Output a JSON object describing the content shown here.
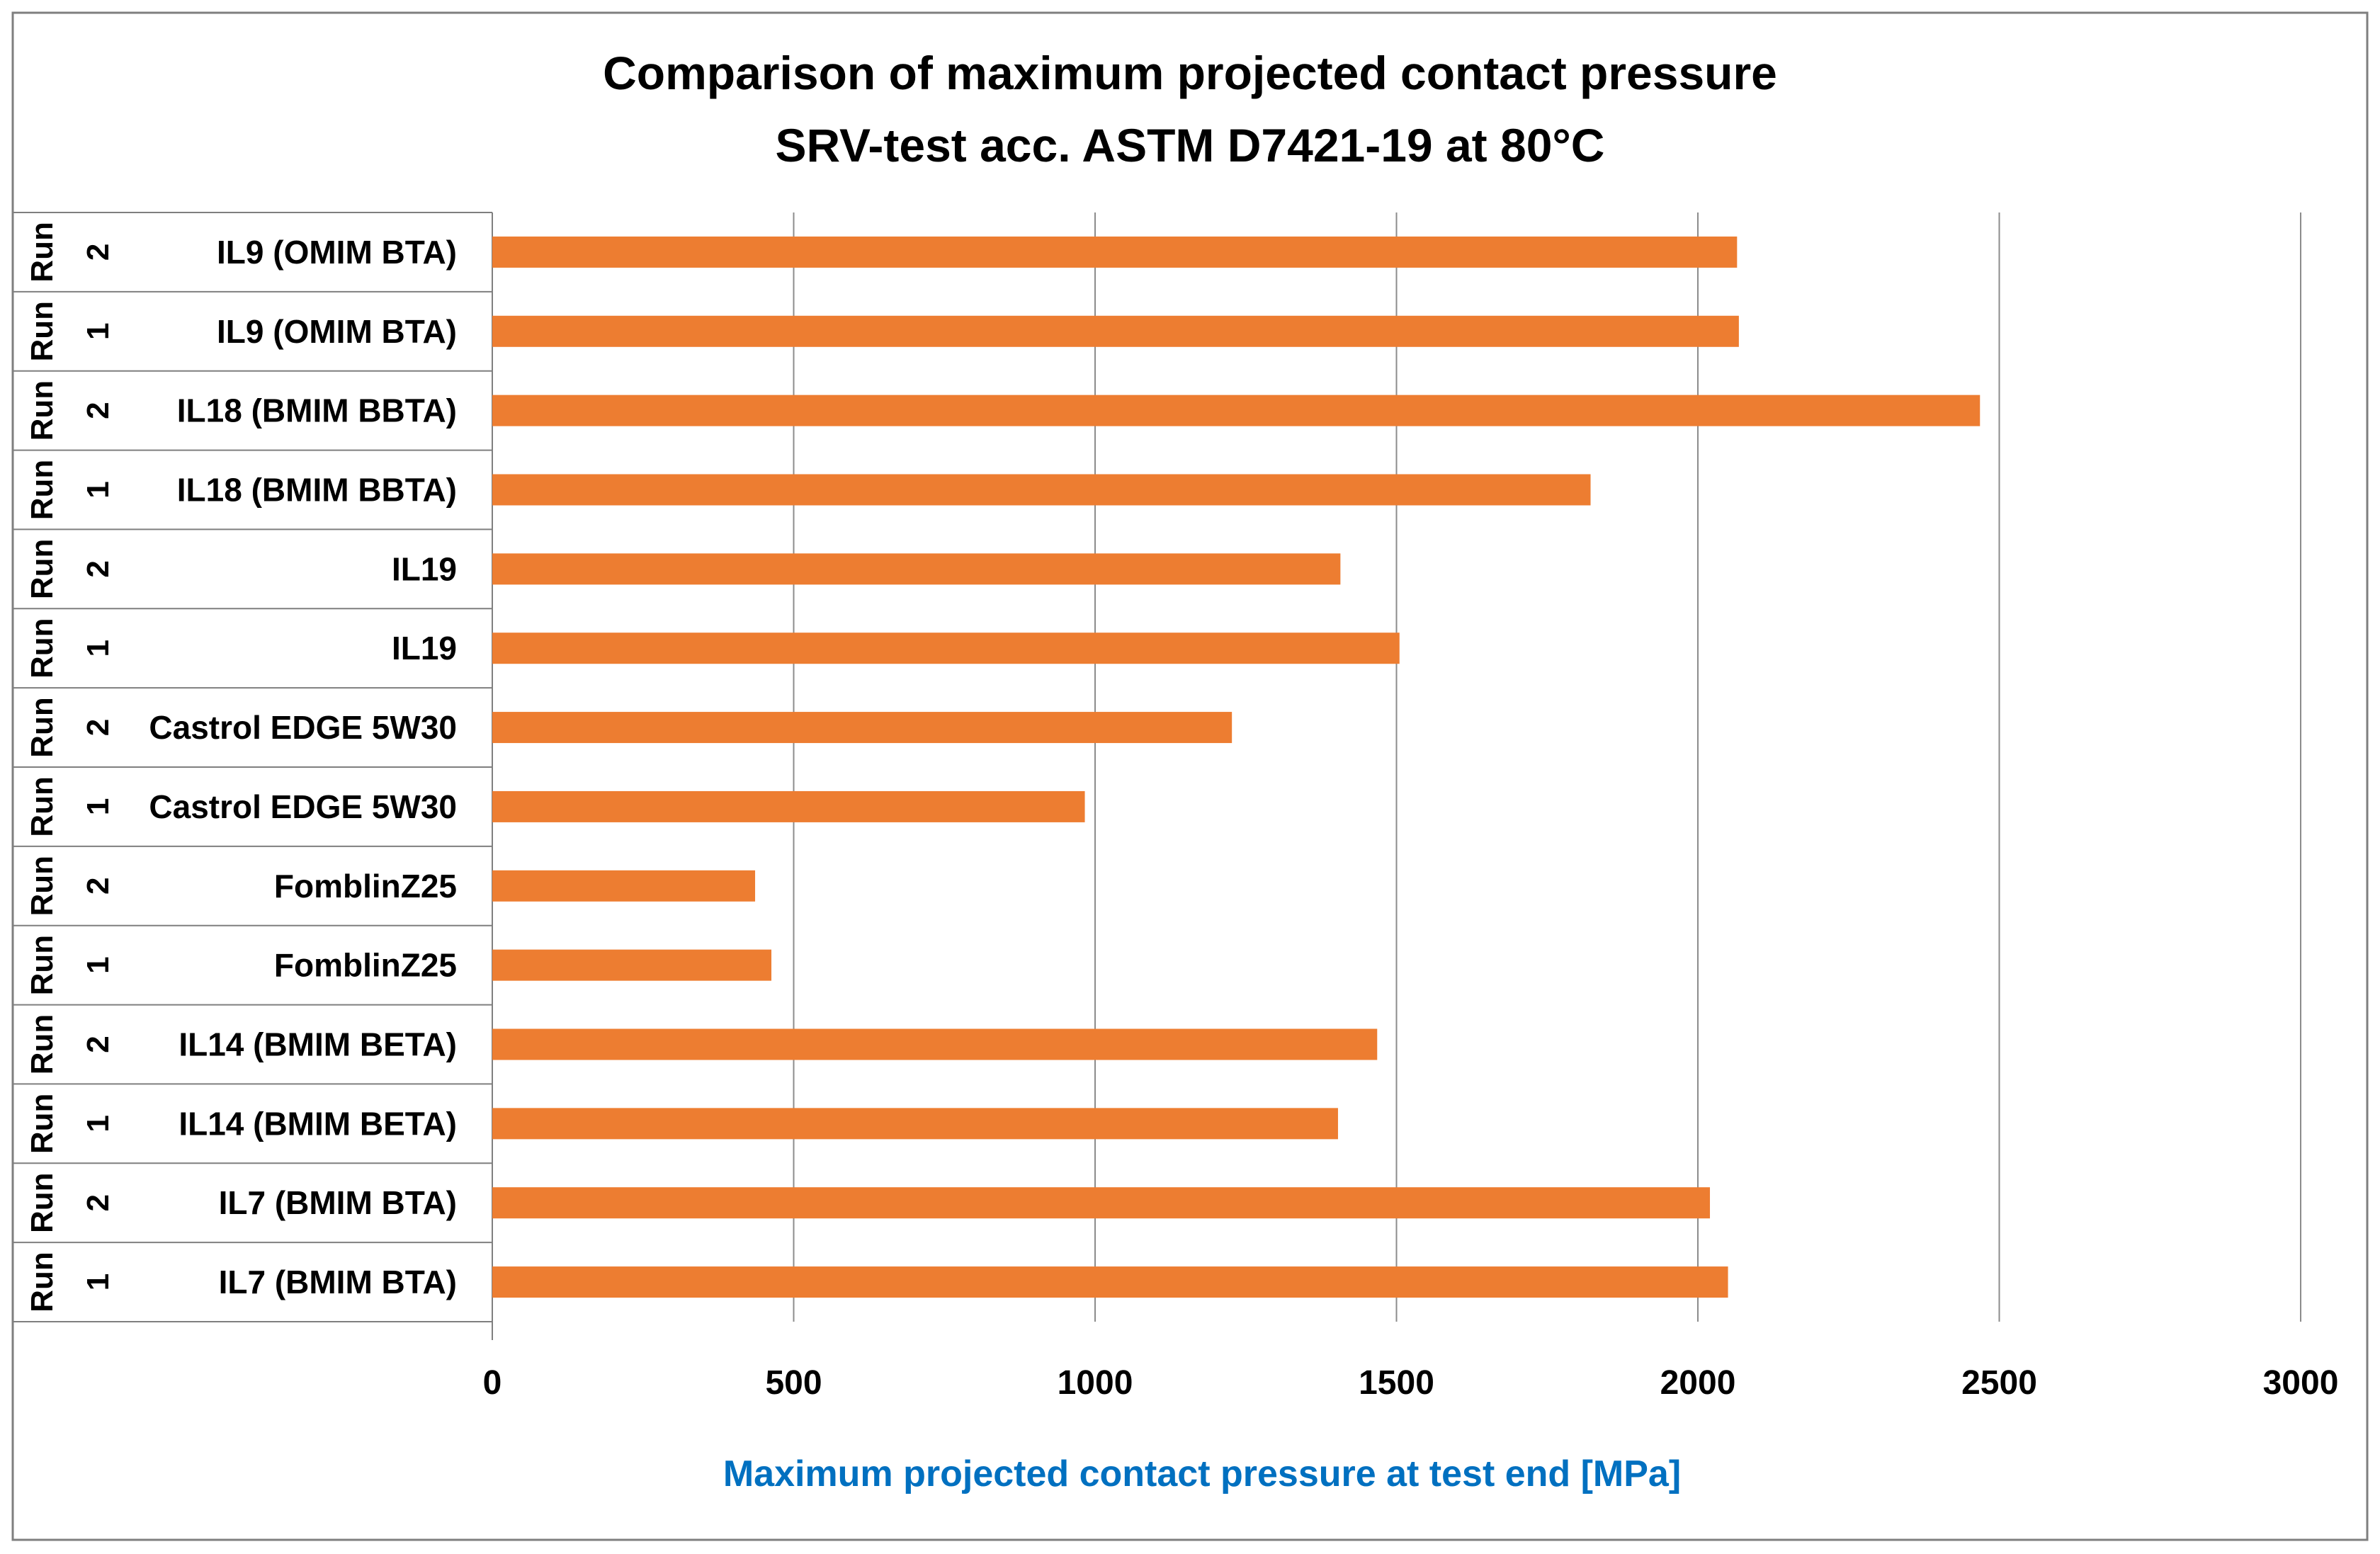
{
  "colors": {
    "bar": "#ED7D31",
    "grid": "#8C8C8C",
    "border": "#7F7F7F",
    "axis_title": "#0070C0",
    "text": "#000000"
  },
  "chart_data": {
    "type": "bar",
    "orientation": "horizontal",
    "title": "Comparison of maximum projected contact pressure",
    "subtitle": "SRV-test acc. ASTM D7421-19 at 80°C",
    "xlabel": "Maximum projected contact pressure at test end [MPa]",
    "ylabel": "",
    "xlim": [
      0,
      3000
    ],
    "ticks": [
      "0",
      "500",
      "1000",
      "1500",
      "2000",
      "2500",
      "3000"
    ],
    "tick_values": [
      0,
      500,
      1000,
      1500,
      2000,
      2500,
      3000
    ],
    "grid": "vertical",
    "legend": "none",
    "group_label": "Run",
    "categories": [
      {
        "label": "IL9 (OMIM BTA)",
        "run": "2",
        "value": 2065
      },
      {
        "label": "IL9 (OMIM BTA)",
        "run": "1",
        "value": 2068
      },
      {
        "label": "IL18 (BMIM BBTA)",
        "run": "2",
        "value": 2468
      },
      {
        "label": "IL18 (BMIM BBTA)",
        "run": "1",
        "value": 1822
      },
      {
        "label": "IL19",
        "run": "2",
        "value": 1407
      },
      {
        "label": "IL19",
        "run": "1",
        "value": 1505
      },
      {
        "label": "Castrol EDGE 5W30",
        "run": "2",
        "value": 1227
      },
      {
        "label": "Castrol EDGE 5W30",
        "run": "1",
        "value": 983
      },
      {
        "label": "FomblinZ25",
        "run": "2",
        "value": 436
      },
      {
        "label": "FomblinZ25",
        "run": "1",
        "value": 463
      },
      {
        "label": "IL14 (BMIM BETA)",
        "run": "2",
        "value": 1468
      },
      {
        "label": "IL14 (BMIM BETA)",
        "run": "1",
        "value": 1403
      },
      {
        "label": "IL7 (BMIM BTA)",
        "run": "2",
        "value": 2020
      },
      {
        "label": "IL7 (BMIM BTA)",
        "run": "1",
        "value": 2050
      }
    ]
  }
}
